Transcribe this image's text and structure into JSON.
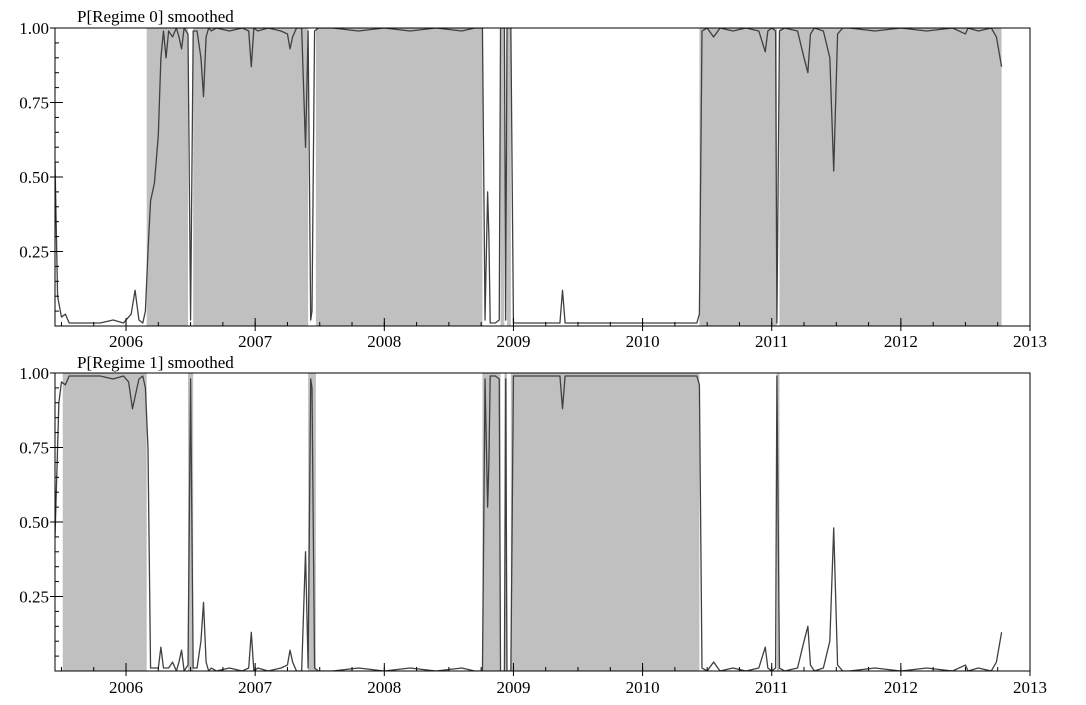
{
  "chart_data": [
    {
      "type": "area",
      "title": "P[Regime 0] smoothed",
      "x_ticks": [
        "2006",
        "2007",
        "2008",
        "2009",
        "2010",
        "2011",
        "2012",
        "2013"
      ],
      "y_ticks": [
        "0.25",
        "0.50",
        "0.75",
        "1.00"
      ],
      "xlim": [
        2005.45,
        2013.0
      ],
      "ylim": [
        0,
        1
      ],
      "grid": false,
      "shading_color": "#c0c0c0",
      "line_color": "#404040",
      "shaded_regimes": [
        [
          2006.16,
          2006.48
        ],
        [
          2006.52,
          2007.41
        ],
        [
          2007.47,
          2008.76
        ],
        [
          2008.9,
          2008.93
        ],
        [
          2008.95,
          2008.98
        ],
        [
          2010.44,
          2011.04
        ],
        [
          2011.06,
          2012.78
        ]
      ],
      "series": [
        {
          "x": [
            2005.45,
            2005.47,
            2005.5,
            2005.53,
            2005.56,
            2005.6,
            2005.7,
            2005.8,
            2005.9,
            2005.98,
            2006.04,
            2006.07,
            2006.1,
            2006.13,
            2006.15,
            2006.17,
            2006.19,
            2006.22,
            2006.25,
            2006.27,
            2006.29,
            2006.31,
            2006.33,
            2006.36,
            2006.39,
            2006.41,
            2006.43,
            2006.45,
            2006.48,
            2006.5,
            2006.52,
            2006.55,
            2006.58,
            2006.6,
            2006.62,
            2006.64,
            2006.66,
            2006.7,
            2006.8,
            2006.9,
            2006.95,
            2006.97,
            2006.99,
            2007.02,
            2007.1,
            2007.2,
            2007.25,
            2007.27,
            2007.29,
            2007.32,
            2007.36,
            2007.39,
            2007.41,
            2007.43,
            2007.44,
            2007.46,
            2007.49,
            2007.52,
            2007.6,
            2007.8,
            2008.0,
            2008.2,
            2008.4,
            2008.6,
            2008.7,
            2008.76,
            2008.78,
            2008.8,
            2008.81,
            2008.82,
            2008.84,
            2008.86,
            2008.89,
            2008.9,
            2008.93,
            2008.94,
            2008.95,
            2008.98,
            2009.0,
            2009.1,
            2009.2,
            2009.3,
            2009.36,
            2009.38,
            2009.4,
            2009.5,
            2009.7,
            2009.9,
            2010.1,
            2010.3,
            2010.42,
            2010.44,
            2010.46,
            2010.5,
            2010.55,
            2010.6,
            2010.7,
            2010.8,
            2010.9,
            2010.95,
            2010.97,
            2011.0,
            2011.03,
            2011.04,
            2011.06,
            2011.1,
            2011.2,
            2011.25,
            2011.28,
            2011.3,
            2011.33,
            2011.4,
            2011.45,
            2011.48,
            2011.51,
            2011.55,
            2011.6,
            2011.8,
            2012.0,
            2012.2,
            2012.4,
            2012.5,
            2012.52,
            2012.6,
            2012.7,
            2012.74,
            2012.76,
            2012.78
          ],
          "y": [
            0.55,
            0.1,
            0.03,
            0.04,
            0.01,
            0.01,
            0.01,
            0.01,
            0.02,
            0.01,
            0.04,
            0.12,
            0.02,
            0.01,
            0.05,
            0.25,
            0.42,
            0.48,
            0.64,
            0.9,
            0.99,
            0.9,
            0.99,
            0.97,
            1.0,
            0.97,
            0.93,
            1.0,
            0.98,
            0.02,
            0.99,
            0.99,
            0.9,
            0.77,
            0.97,
            1.0,
            0.99,
            1.0,
            0.99,
            1.0,
            0.99,
            0.87,
            1.0,
            0.99,
            1.0,
            0.99,
            0.98,
            0.93,
            0.97,
            1.0,
            1.0,
            0.6,
            0.99,
            0.02,
            0.05,
            0.99,
            1.0,
            1.0,
            1.0,
            0.99,
            1.0,
            0.99,
            1.0,
            0.99,
            1.0,
            1.0,
            0.02,
            0.45,
            0.3,
            0.01,
            0.01,
            0.01,
            0.02,
            1.0,
            1.0,
            0.02,
            1.0,
            1.0,
            0.01,
            0.01,
            0.01,
            0.01,
            0.01,
            0.12,
            0.01,
            0.01,
            0.01,
            0.01,
            0.01,
            0.01,
            0.01,
            0.04,
            0.99,
            1.0,
            0.97,
            1.0,
            0.99,
            1.0,
            0.99,
            0.92,
            0.99,
            1.0,
            0.99,
            0.01,
            0.99,
            1.0,
            0.99,
            0.9,
            0.85,
            0.98,
            1.0,
            0.99,
            0.9,
            0.52,
            0.98,
            1.0,
            1.0,
            0.99,
            1.0,
            0.99,
            1.0,
            0.98,
            1.0,
            0.99,
            1.0,
            0.97,
            0.92,
            0.87
          ]
        }
      ]
    },
    {
      "type": "area",
      "title": "P[Regime 1] smoothed",
      "x_ticks": [
        "2006",
        "2007",
        "2008",
        "2009",
        "2010",
        "2011",
        "2012",
        "2013"
      ],
      "y_ticks": [
        "0.25",
        "0.50",
        "0.75",
        "1.00"
      ],
      "xlim": [
        2005.45,
        2013.0
      ],
      "ylim": [
        0,
        1
      ],
      "grid": false,
      "shading_color": "#c0c0c0",
      "line_color": "#404040",
      "shaded_regimes": [
        [
          2005.51,
          2006.16
        ],
        [
          2006.48,
          2006.52
        ],
        [
          2007.41,
          2007.47
        ],
        [
          2008.76,
          2008.9
        ],
        [
          2008.93,
          2008.95
        ],
        [
          2008.98,
          2010.44
        ],
        [
          2011.04,
          2011.06
        ]
      ],
      "series": [
        {
          "x": [
            2005.45,
            2005.48,
            2005.5,
            2005.53,
            2005.56,
            2005.6,
            2005.7,
            2005.8,
            2005.9,
            2005.98,
            2006.02,
            2006.05,
            2006.1,
            2006.13,
            2006.15,
            2006.17,
            2006.19,
            2006.22,
            2006.25,
            2006.27,
            2006.29,
            2006.31,
            2006.33,
            2006.36,
            2006.39,
            2006.41,
            2006.43,
            2006.45,
            2006.48,
            2006.5,
            2006.52,
            2006.55,
            2006.58,
            2006.6,
            2006.62,
            2006.64,
            2006.66,
            2006.7,
            2006.8,
            2006.9,
            2006.95,
            2006.97,
            2006.99,
            2007.02,
            2007.1,
            2007.2,
            2007.25,
            2007.27,
            2007.29,
            2007.32,
            2007.36,
            2007.39,
            2007.41,
            2007.43,
            2007.44,
            2007.46,
            2007.49,
            2007.52,
            2007.6,
            2007.8,
            2008.0,
            2008.2,
            2008.4,
            2008.6,
            2008.7,
            2008.76,
            2008.78,
            2008.8,
            2008.81,
            2008.82,
            2008.84,
            2008.86,
            2008.89,
            2008.9,
            2008.93,
            2008.94,
            2008.95,
            2008.98,
            2009.0,
            2009.1,
            2009.2,
            2009.3,
            2009.36,
            2009.38,
            2009.4,
            2009.5,
            2009.7,
            2009.9,
            2010.1,
            2010.3,
            2010.42,
            2010.44,
            2010.46,
            2010.5,
            2010.55,
            2010.6,
            2010.7,
            2010.8,
            2010.9,
            2010.95,
            2010.97,
            2011.0,
            2011.03,
            2011.04,
            2011.06,
            2011.1,
            2011.2,
            2011.25,
            2011.28,
            2011.3,
            2011.33,
            2011.4,
            2011.45,
            2011.48,
            2011.51,
            2011.55,
            2011.6,
            2011.8,
            2012.0,
            2012.2,
            2012.4,
            2012.5,
            2012.52,
            2012.6,
            2012.7,
            2012.74,
            2012.76,
            2012.78
          ],
          "y": [
            0.45,
            0.9,
            0.97,
            0.96,
            0.99,
            0.99,
            0.99,
            0.99,
            0.98,
            0.99,
            0.97,
            0.88,
            0.98,
            0.99,
            0.95,
            0.75,
            0.01,
            0.01,
            0.01,
            0.08,
            0.01,
            0.01,
            0.01,
            0.03,
            0.0,
            0.03,
            0.07,
            0.0,
            0.02,
            0.98,
            0.01,
            0.01,
            0.1,
            0.23,
            0.03,
            0.0,
            0.01,
            0.0,
            0.01,
            0.0,
            0.01,
            0.13,
            0.0,
            0.01,
            0.0,
            0.01,
            0.02,
            0.07,
            0.03,
            0.0,
            0.0,
            0.4,
            0.01,
            0.98,
            0.95,
            0.01,
            0.0,
            0.0,
            0.0,
            0.01,
            0.0,
            0.01,
            0.0,
            0.01,
            0.0,
            0.0,
            0.98,
            0.55,
            0.7,
            0.99,
            0.99,
            0.99,
            0.98,
            0.0,
            0.0,
            0.98,
            0.0,
            0.0,
            0.99,
            0.99,
            0.99,
            0.99,
            0.99,
            0.88,
            0.99,
            0.99,
            0.99,
            0.99,
            0.99,
            0.99,
            0.99,
            0.96,
            0.01,
            0.0,
            0.03,
            0.0,
            0.01,
            0.0,
            0.01,
            0.08,
            0.01,
            0.0,
            0.01,
            0.99,
            0.01,
            0.0,
            0.01,
            0.1,
            0.15,
            0.02,
            0.0,
            0.01,
            0.1,
            0.48,
            0.02,
            0.0,
            0.0,
            0.01,
            0.0,
            0.01,
            0.0,
            0.02,
            0.0,
            0.01,
            0.0,
            0.03,
            0.08,
            0.13
          ]
        }
      ]
    }
  ]
}
